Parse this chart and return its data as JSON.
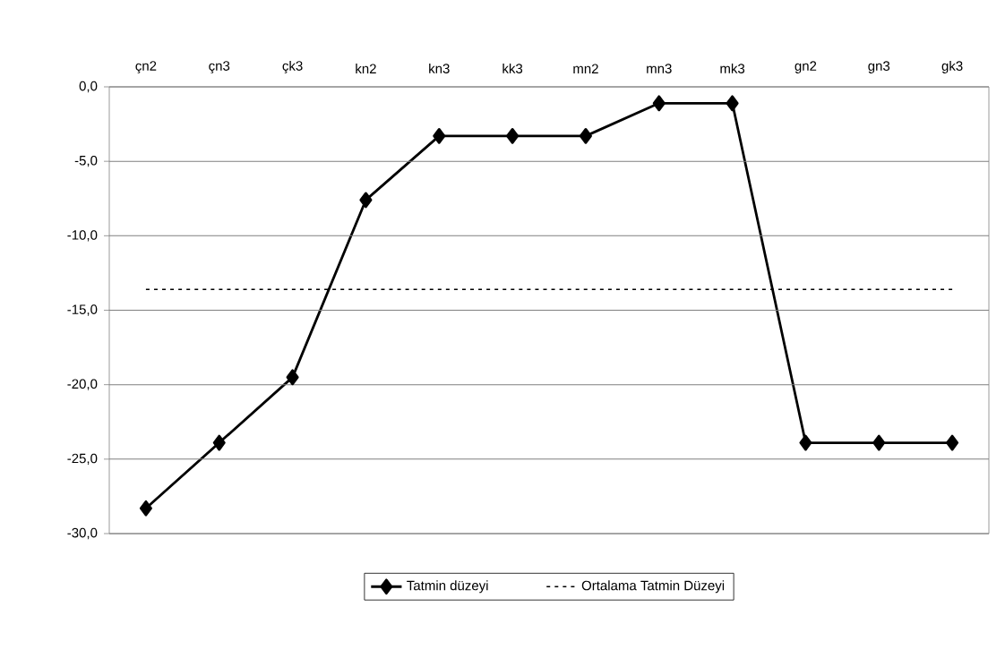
{
  "chart_data": {
    "type": "line",
    "categories": [
      "çn2",
      "çn3",
      "çk3",
      "kn2",
      "kn3",
      "kk3",
      "mn2",
      "mn3",
      "mk3",
      "gn2",
      "gn3",
      "gk3"
    ],
    "series": [
      {
        "name": "Tatmin düzeyi",
        "color": "#000000",
        "marker": "diamond",
        "line_style": "solid",
        "values": [
          -28.3,
          -23.9,
          -19.5,
          -7.6,
          -3.3,
          -3.3,
          -3.3,
          -1.1,
          -1.1,
          -23.9,
          -23.9,
          -23.9
        ]
      },
      {
        "name": "Ortalama Tatmin Düzeyi",
        "color": "#000000",
        "marker": "none",
        "line_style": "dotted",
        "values": [
          -13.6,
          -13.6,
          -13.6,
          -13.6,
          -13.6,
          -13.6,
          -13.6,
          -13.6,
          -13.6,
          -13.6,
          -13.6,
          -13.6
        ]
      }
    ],
    "ylim": [
      -30,
      0
    ],
    "yticks": [
      {
        "value": 0,
        "label": "0,0"
      },
      {
        "value": -5,
        "label": "-5,0"
      },
      {
        "value": -10,
        "label": "-10,0"
      },
      {
        "value": -15,
        "label": "-15,0"
      },
      {
        "value": -20,
        "label": "-20,0"
      },
      {
        "value": -25,
        "label": "-25,0"
      },
      {
        "value": -30,
        "label": "-30,0"
      }
    ],
    "grid": "y",
    "legend": "bottom"
  }
}
